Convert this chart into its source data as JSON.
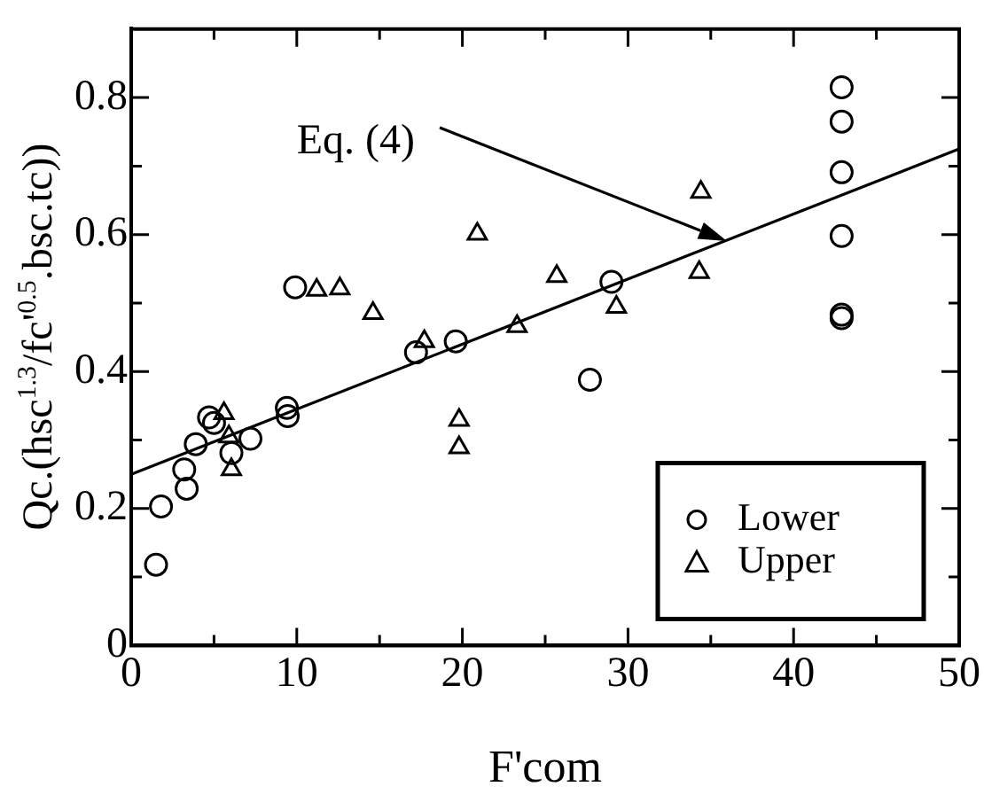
{
  "chart_data": {
    "type": "scatter",
    "xlabel": "F'com",
    "ylabel": "Qc.(hsc$^{1.3}$/fc'$^{0.5}$.bsc.tc))",
    "xlim": [
      0,
      50
    ],
    "ylim": [
      0,
      0.9
    ],
    "xticks": [
      0,
      {
        "value": 5,
        "label": null
      },
      10,
      {
        "value": 15,
        "label": null
      },
      20,
      {
        "value": 25,
        "label": null
      },
      30,
      {
        "value": 35,
        "label": null
      },
      40,
      {
        "value": 45,
        "label": null
      },
      50
    ],
    "yticks": [
      0,
      {
        "value": 0.1,
        "label": null
      },
      0.2,
      {
        "value": 0.3,
        "label": null
      },
      0.4,
      {
        "value": 0.5,
        "label": null
      },
      0.6,
      {
        "value": 0.7,
        "label": null
      },
      0.8
    ],
    "grid": false,
    "legend": "bottom right",
    "annotations": [
      "Eq. (4)"
    ],
    "series": [
      {
        "name": "Lower",
        "color": "#000000",
        "marker": "circle",
        "x": [
          1.5,
          1.8,
          3.2,
          3.35,
          3.9,
          4.7,
          5.0,
          6.05,
          7.2,
          9.4,
          9.45,
          9.9,
          17.2,
          19.6,
          27.7,
          29.0,
          42.9,
          42.9,
          42.9,
          42.9,
          42.9,
          42.9
        ],
        "values": [
          0.118,
          0.203,
          0.257,
          0.229,
          0.294,
          0.333,
          0.325,
          0.281,
          0.302,
          0.347,
          0.335,
          0.523,
          0.428,
          0.444,
          0.388,
          0.531,
          0.815,
          0.765,
          0.691,
          0.598,
          0.483,
          0.478
        ]
      },
      {
        "name": "Upper",
        "color": "#000000",
        "marker": "triangle",
        "x": [
          5.6,
          5.9,
          6.05,
          11.2,
          12.6,
          14.6,
          17.7,
          19.8,
          19.8,
          20.9,
          23.3,
          25.7,
          29.3,
          34.3,
          34.4
        ],
        "values": [
          0.339,
          0.305,
          0.257,
          0.519,
          0.521,
          0.485,
          0.444,
          0.329,
          0.289,
          0.601,
          0.466,
          0.539,
          0.494,
          0.545,
          0.662
        ]
      },
      {
        "type": "line",
        "color": "#000000",
        "marker": "none",
        "x": [
          0,
          50
        ],
        "values": [
          0.25,
          0.725
        ]
      }
    ]
  }
}
